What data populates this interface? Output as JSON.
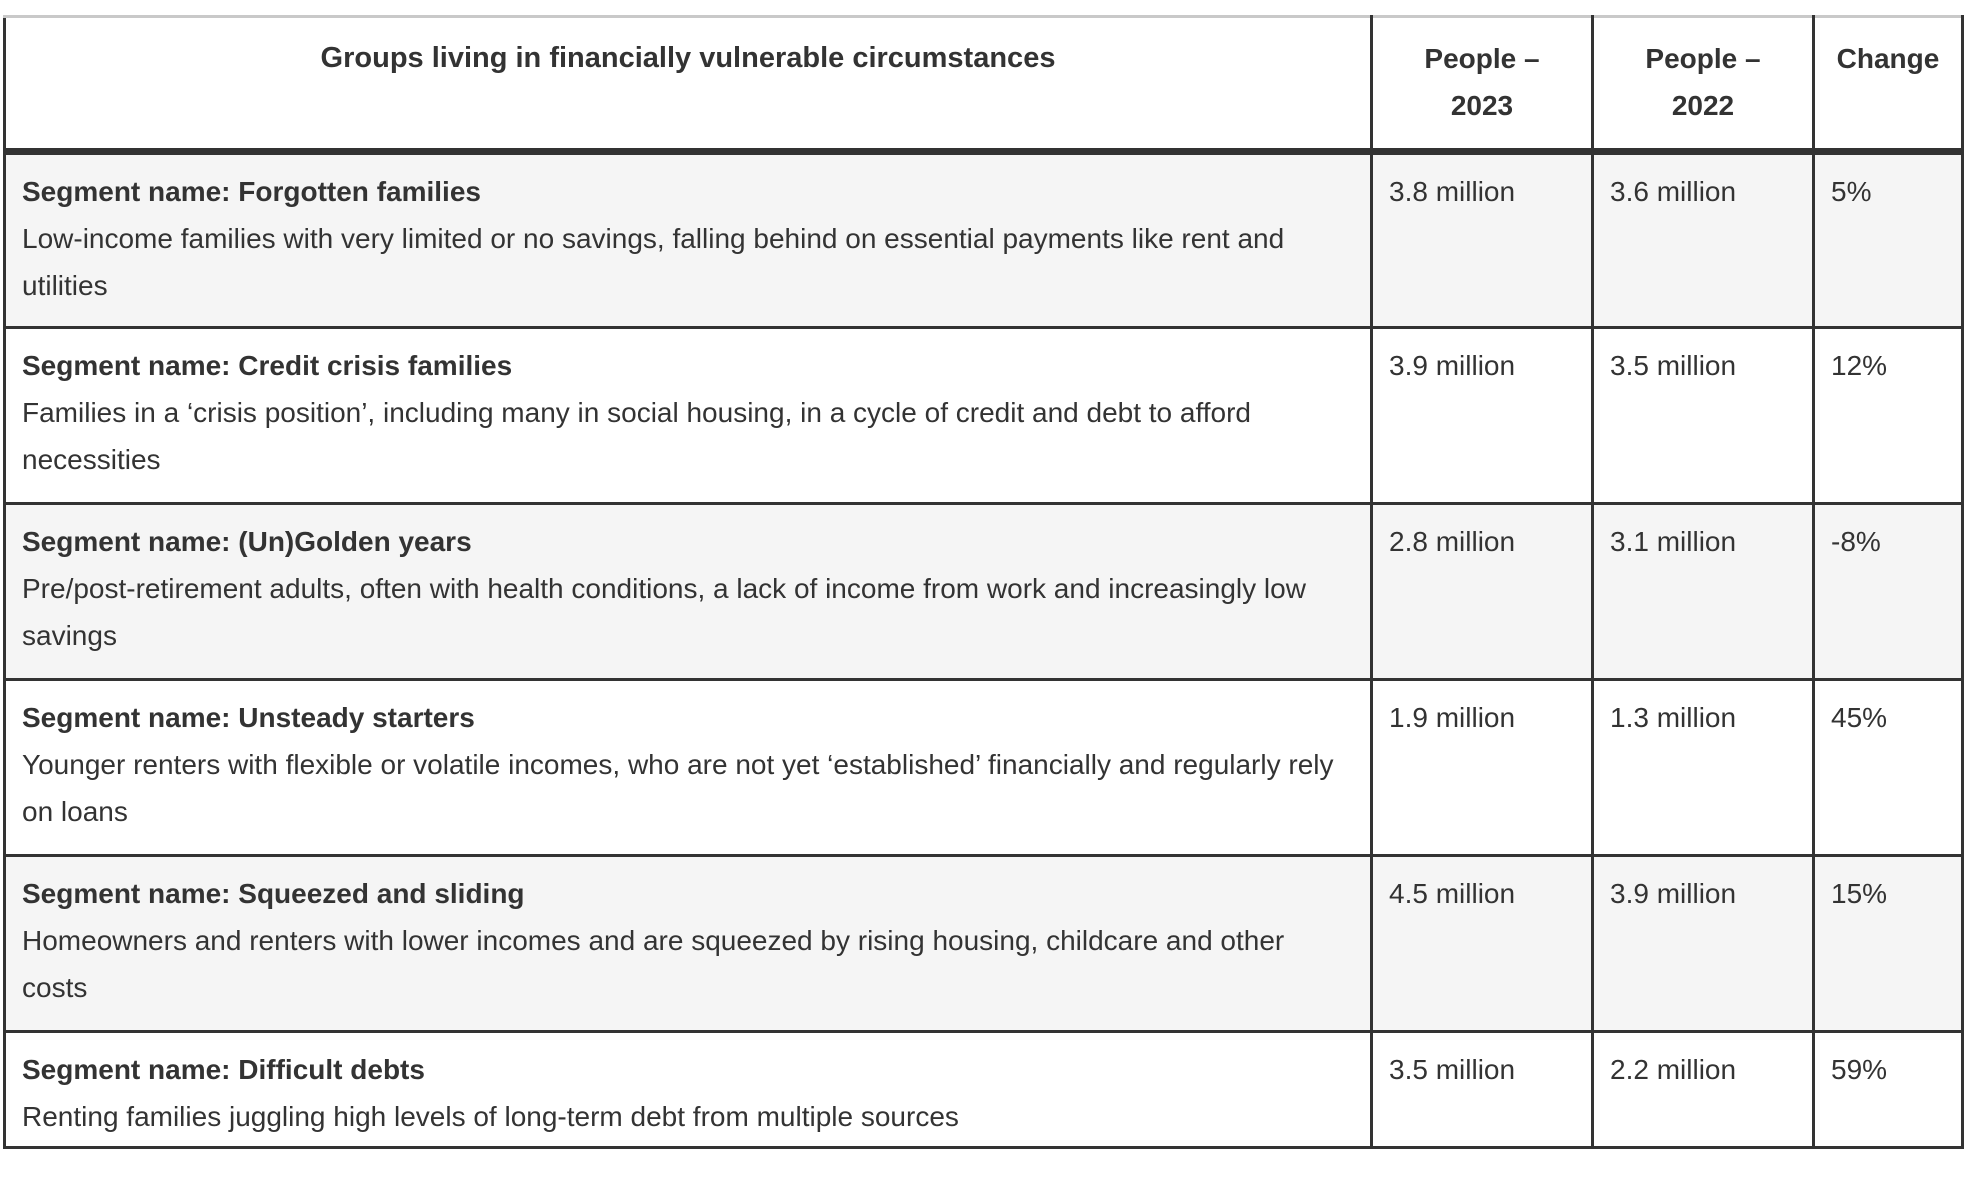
{
  "colors": {
    "text": "#333333",
    "border_dark": "#333333",
    "border_top_light": "#c9c9c9",
    "row_alt_background": "#f5f5f5",
    "row_background": "#ffffff"
  },
  "table": {
    "header": {
      "groups_label": "Groups living in financially vulnerable circumstances",
      "people_2023": {
        "line1": "People –",
        "line2": "2023"
      },
      "people_2022": {
        "line1": "People –",
        "line2": "2022"
      },
      "change_label": "Change"
    },
    "rows": [
      {
        "name": "Segment name: Forgotten families",
        "description": "Low-income families with very limited or no savings, falling behind on essential payments like rent and utilities",
        "people_2023": "3.8 million",
        "people_2022": "3.6 million",
        "change": "5%"
      },
      {
        "name": "Segment name: Credit crisis families",
        "description": "Families in a ‘crisis position’, including many in social housing, in a cycle of credit and debt to afford necessities",
        "people_2023": "3.9 million",
        "people_2022": "3.5 million",
        "change": "12%"
      },
      {
        "name": "Segment name: (Un)Golden years",
        "description": "Pre/post-retirement adults, often with health conditions, a lack of income from work and increasingly low savings",
        "people_2023": "2.8 million",
        "people_2022": "3.1 million",
        "change": "-8%"
      },
      {
        "name": "Segment name: Unsteady starters",
        "description": "Younger renters with flexible or volatile incomes, who are not yet ‘established’ financially and regularly rely on loans",
        "people_2023": "1.9 million",
        "people_2022": "1.3 million",
        "change": "45%"
      },
      {
        "name": "Segment name: Squeezed and sliding",
        "description": "Homeowners and renters with lower incomes and are squeezed by rising housing, childcare and other costs",
        "people_2023": "4.5 million",
        "people_2022": "3.9 million",
        "change": "15%"
      },
      {
        "name": "Segment name: Difficult debts",
        "description": "Renting families juggling high levels of long-term debt from multiple sources",
        "people_2023": "3.5 million",
        "people_2022": "2.2 million",
        "change": "59%"
      }
    ]
  }
}
